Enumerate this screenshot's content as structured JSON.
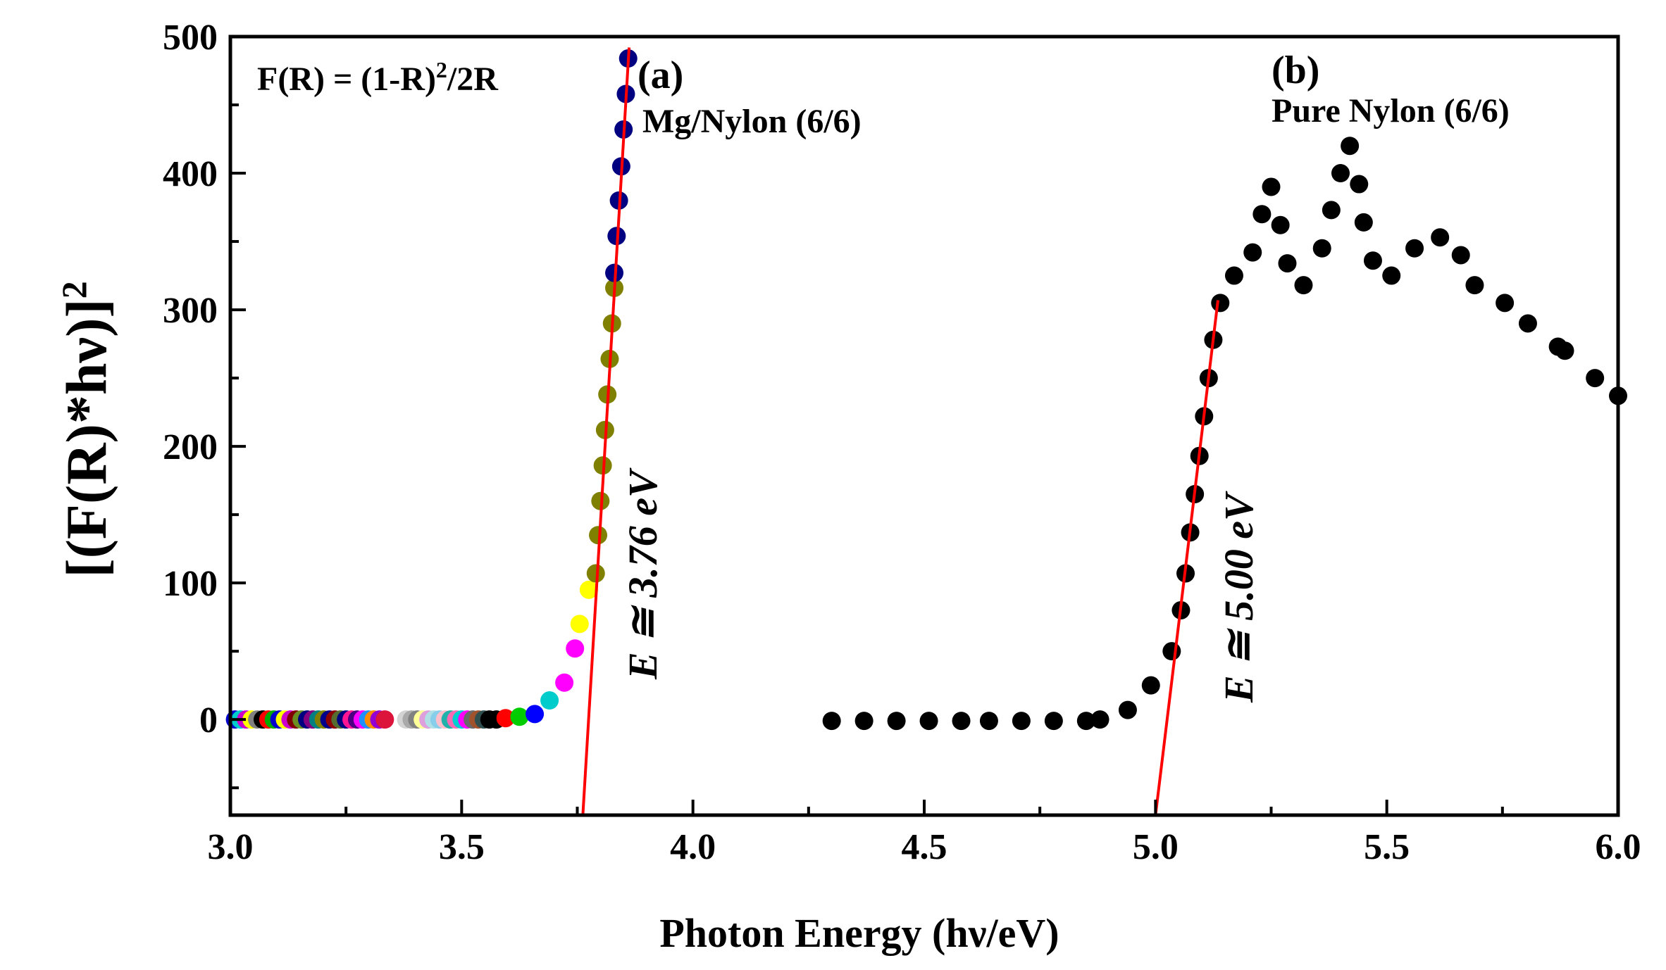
{
  "chart_data": {
    "type": "scatter",
    "title": "",
    "xlabel": "Photon Energy (hν/eV)",
    "ylabel_parts": {
      "open": "[(F(R)*hν)]",
      "exponent": "2"
    },
    "xlim": [
      3.0,
      6.0
    ],
    "ylim": [
      -70,
      500
    ],
    "x_ticks": [
      3.0,
      3.5,
      4.0,
      4.5,
      5.0,
      5.5,
      6.0
    ],
    "x_tick_labels": [
      "3.0",
      "3.5",
      "4.0",
      "4.5",
      "5.0",
      "5.5",
      "6.0"
    ],
    "y_ticks": [
      0,
      100,
      200,
      300,
      400,
      500
    ],
    "y_tick_labels": [
      "0",
      "100",
      "200",
      "300",
      "400",
      "500"
    ],
    "formula": {
      "text": "F(R) = (1-R)",
      "sup": "2",
      "tail": "/2R"
    },
    "series": [
      {
        "name": "Mg/Nylon (6/6)",
        "panel_label": "(a)",
        "points": [
          [
            3.01,
            0,
            "#0000cc"
          ],
          [
            3.022,
            0,
            "#00cccc"
          ],
          [
            3.034,
            0,
            "#cc00cc"
          ],
          [
            3.046,
            0,
            "#ffff00"
          ],
          [
            3.058,
            0,
            "#808080"
          ],
          [
            3.07,
            0,
            "#000000"
          ],
          [
            3.082,
            0,
            "#ff0000"
          ],
          [
            3.094,
            0,
            "#00aa00"
          ],
          [
            3.106,
            0,
            "#0000cc"
          ],
          [
            3.118,
            0,
            "#ffff00"
          ],
          [
            3.13,
            0,
            "#cc00cc"
          ],
          [
            3.142,
            0,
            "#800000"
          ],
          [
            3.154,
            0,
            "#6b8e23"
          ],
          [
            3.166,
            0,
            "#000080"
          ],
          [
            3.178,
            0,
            "#800080"
          ],
          [
            3.19,
            0,
            "#008080"
          ],
          [
            3.202,
            0,
            "#808000"
          ],
          [
            3.214,
            0,
            "#00008b"
          ],
          [
            3.226,
            0,
            "#8b0000"
          ],
          [
            3.238,
            0,
            "#556b2f"
          ],
          [
            3.25,
            0,
            "#000080"
          ],
          [
            3.262,
            0,
            "#ff1493"
          ],
          [
            3.274,
            0,
            "#4b0082"
          ],
          [
            3.286,
            0,
            "#ff00ff"
          ],
          [
            3.298,
            0,
            "#1e90ff"
          ],
          [
            3.31,
            0,
            "#ff8c00"
          ],
          [
            3.322,
            0,
            "#9400d3"
          ],
          [
            3.334,
            0,
            "#dc143c"
          ],
          [
            3.38,
            0,
            "#d3d3d3"
          ],
          [
            3.392,
            0,
            "#a9a9a9"
          ],
          [
            3.404,
            0,
            "#808080"
          ],
          [
            3.416,
            0,
            "#ffff99"
          ],
          [
            3.428,
            0,
            "#dda0dd"
          ],
          [
            3.44,
            0,
            "#b0e0e6"
          ],
          [
            3.452,
            0,
            "#87ceeb"
          ],
          [
            3.464,
            0,
            "#ffc0cb"
          ],
          [
            3.476,
            0,
            "#20b2aa"
          ],
          [
            3.488,
            0,
            "#ff69b4"
          ],
          [
            3.5,
            0,
            "#00ced1"
          ],
          [
            3.512,
            0,
            "#ff00ff"
          ],
          [
            3.524,
            0,
            "#696969"
          ],
          [
            3.536,
            0,
            "#a0522d"
          ],
          [
            3.548,
            0,
            "#2f4f4f"
          ],
          [
            3.56,
            0,
            "#000000"
          ],
          [
            3.575,
            0,
            "#000000"
          ],
          [
            3.595,
            1,
            "#ff0000"
          ],
          [
            3.625,
            2,
            "#00cc00"
          ],
          [
            3.658,
            4,
            "#0000ff"
          ],
          [
            3.69,
            14,
            "#00cccc"
          ],
          [
            3.722,
            27,
            "#ff00ff"
          ],
          [
            3.745,
            52,
            "#ff00ff"
          ],
          [
            3.755,
            70,
            "#ffff00"
          ],
          [
            3.775,
            95,
            "#ffff00"
          ],
          [
            3.79,
            107,
            "#808000"
          ],
          [
            3.795,
            135,
            "#808000"
          ],
          [
            3.8,
            160,
            "#808000"
          ],
          [
            3.805,
            186,
            "#808000"
          ],
          [
            3.81,
            212,
            "#808000"
          ],
          [
            3.815,
            238,
            "#808000"
          ],
          [
            3.82,
            264,
            "#808000"
          ],
          [
            3.825,
            290,
            "#808000"
          ],
          [
            3.83,
            316,
            "#808000"
          ],
          [
            3.83,
            327,
            "#000080"
          ],
          [
            3.835,
            354,
            "#000080"
          ],
          [
            3.84,
            380,
            "#000080"
          ],
          [
            3.845,
            405,
            "#000080"
          ],
          [
            3.85,
            432,
            "#000080"
          ],
          [
            3.855,
            458,
            "#000080"
          ],
          [
            3.86,
            484,
            "#000080"
          ]
        ],
        "fit_line": [
          [
            3.762,
            -70
          ],
          [
            3.862,
            492
          ]
        ],
        "gap_label": "E ≅ 3.76 eV"
      },
      {
        "name": "Pure Nylon (6/6)",
        "panel_label": "(b)",
        "points": [
          [
            4.3,
            -1
          ],
          [
            4.37,
            -1
          ],
          [
            4.44,
            -1
          ],
          [
            4.51,
            -1
          ],
          [
            4.58,
            -1
          ],
          [
            4.64,
            -1
          ],
          [
            4.71,
            -1
          ],
          [
            4.78,
            -1
          ],
          [
            4.85,
            -1
          ],
          [
            4.88,
            0
          ],
          [
            4.94,
            7
          ],
          [
            4.99,
            25
          ],
          [
            5.035,
            50
          ],
          [
            5.055,
            80
          ],
          [
            5.065,
            107
          ],
          [
            5.075,
            137
          ],
          [
            5.085,
            165
          ],
          [
            5.095,
            193
          ],
          [
            5.105,
            222
          ],
          [
            5.115,
            250
          ],
          [
            5.125,
            278
          ],
          [
            5.14,
            305
          ],
          [
            5.17,
            325
          ],
          [
            5.21,
            342
          ],
          [
            5.23,
            370
          ],
          [
            5.25,
            390
          ],
          [
            5.27,
            362
          ],
          [
            5.285,
            334
          ],
          [
            5.32,
            318
          ],
          [
            5.36,
            345
          ],
          [
            5.38,
            373
          ],
          [
            5.4,
            400
          ],
          [
            5.42,
            420
          ],
          [
            5.44,
            392
          ],
          [
            5.45,
            364
          ],
          [
            5.47,
            336
          ],
          [
            5.51,
            325
          ],
          [
            5.56,
            345
          ],
          [
            5.615,
            353
          ],
          [
            5.66,
            340
          ],
          [
            5.69,
            318
          ],
          [
            5.755,
            305
          ],
          [
            5.805,
            290
          ],
          [
            5.87,
            273
          ],
          [
            5.885,
            270
          ],
          [
            5.95,
            250
          ],
          [
            6.0,
            237
          ]
        ],
        "fit_line": [
          [
            5.0,
            -70
          ],
          [
            5.135,
            307
          ]
        ],
        "gap_label": "E ≅ 5.00 eV"
      }
    ],
    "marker_default_color": "#000000",
    "fit_line_color": "#ff0000",
    "grid": false,
    "legend": "none"
  }
}
